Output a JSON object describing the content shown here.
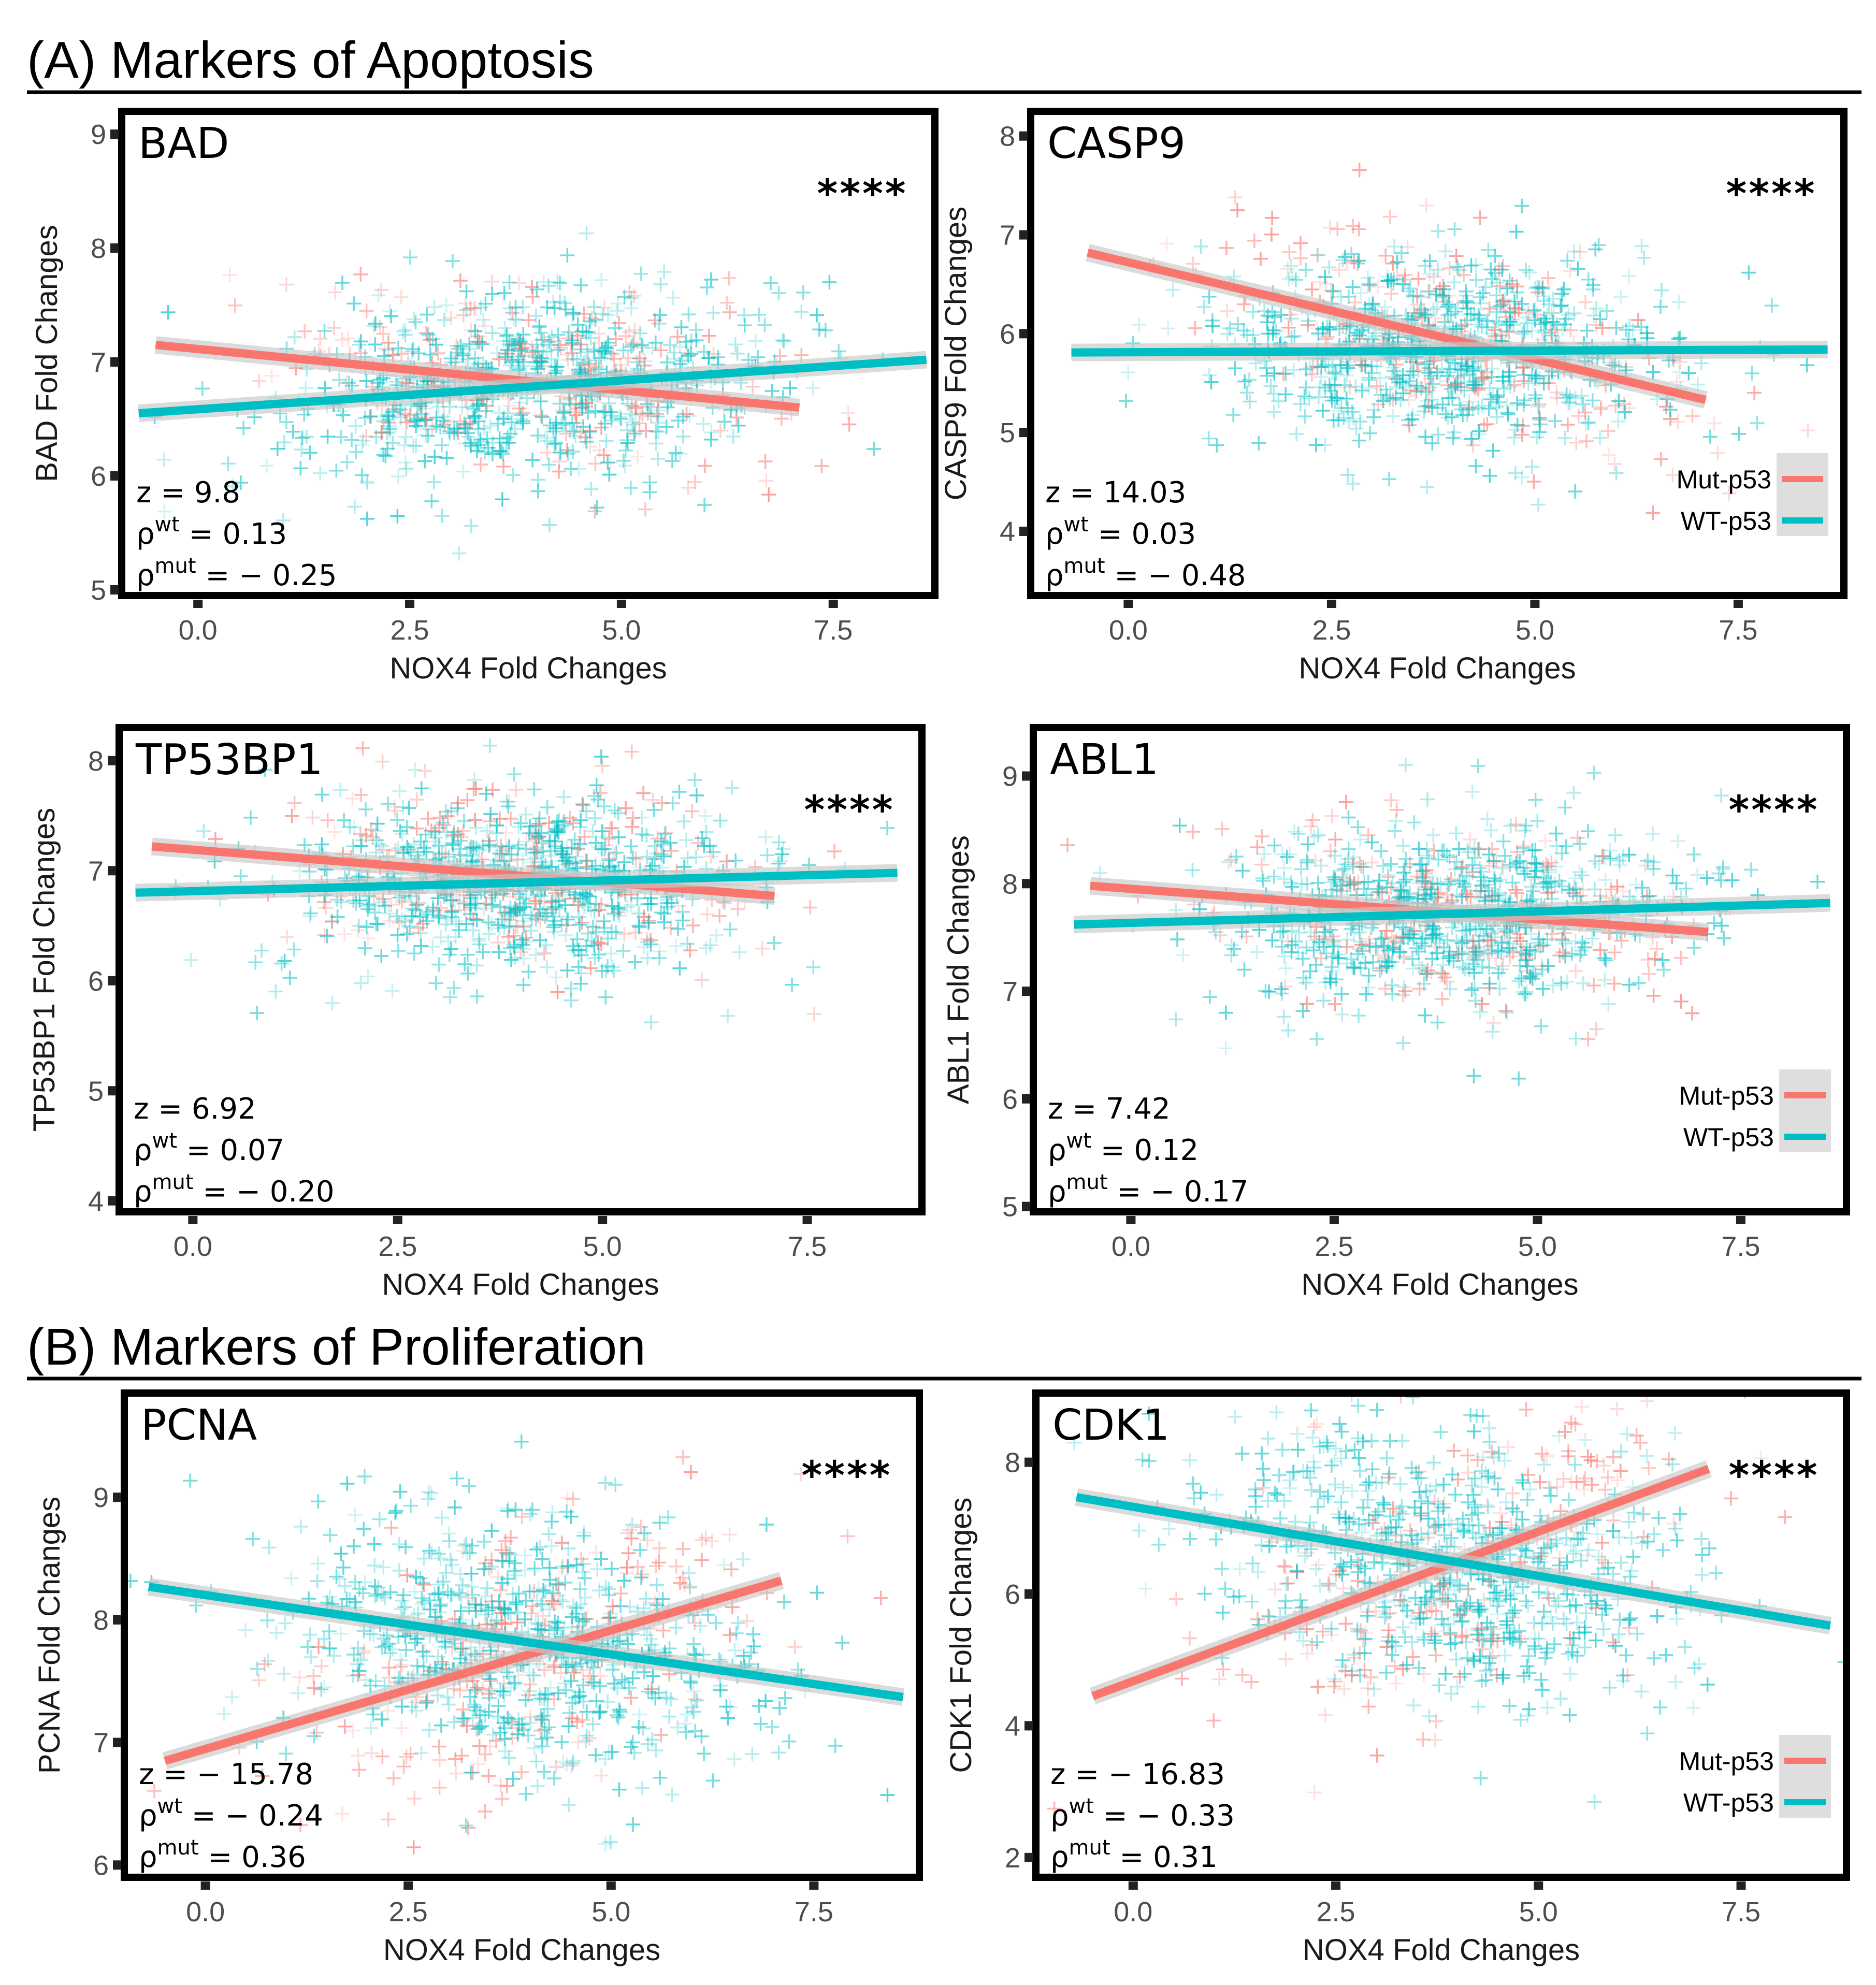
{
  "figure": {
    "sections": [
      {
        "label": "(A) Markers of Apoptosis"
      },
      {
        "label": "(B) Markers of Proliferation"
      }
    ],
    "colors": {
      "mut": "#f8766d",
      "wt": "#00bfc4",
      "ci_band": "#c8c8c8",
      "frame": "#000000"
    },
    "legend": {
      "items": [
        {
          "label": "Mut-p53",
          "color": "#f8766d"
        },
        {
          "label": "WT-p53",
          "color": "#00bfc4"
        }
      ]
    }
  },
  "chart_data": [
    {
      "type": "scatter",
      "title": "BAD",
      "xlabel": "NOX4 Fold Changes",
      "ylabel": "BAD Fold Changes",
      "xlim": [
        -0.9,
        8.7
      ],
      "ylim": [
        4.95,
        9.2
      ],
      "xticks": [
        0.0,
        2.5,
        5.0,
        7.5
      ],
      "xtick_labels": [
        "0.0",
        "2.5",
        "5.0",
        "7.5"
      ],
      "yticks": [
        5,
        6,
        7,
        8,
        9
      ],
      "ytick_labels": [
        "5",
        "6",
        "7",
        "8",
        "9"
      ],
      "stats": {
        "z": "z = 9.8",
        "rho_wt": " = 0.13",
        "rho_mut": " = − 0.25"
      },
      "significance": "****",
      "legend": false,
      "points": {
        "x_center": 3.9,
        "x_sd": 1.45,
        "y_center": 6.85,
        "y_sd": 0.42,
        "n_wt": 700,
        "n_mut": 260
      },
      "series": [
        {
          "name": "Mut-p53",
          "fit": {
            "x": [
              -0.5,
              7.1
            ],
            "y": [
              7.15,
              6.6
            ]
          }
        },
        {
          "name": "WT-p53",
          "fit": {
            "x": [
              -0.7,
              8.6
            ],
            "y": [
              6.55,
              7.02
            ]
          }
        }
      ]
    },
    {
      "type": "scatter",
      "title": "CASP9",
      "xlabel": "NOX4 Fold Changes",
      "ylabel": "CASP9 Fold Changes",
      "xlim": [
        -1.2,
        8.8
      ],
      "ylim": [
        3.35,
        8.25
      ],
      "xticks": [
        0.0,
        2.5,
        5.0,
        7.5
      ],
      "xtick_labels": [
        "0.0",
        "2.5",
        "5.0",
        "7.5"
      ],
      "yticks": [
        4,
        5,
        6,
        7,
        8
      ],
      "ytick_labels": [
        "4",
        "5",
        "6",
        "7",
        "8"
      ],
      "stats": {
        "z": "z = 14.03",
        "rho_wt": " = 0.03",
        "rho_mut": " = − 0.48"
      },
      "significance": "****",
      "legend": true,
      "points": {
        "x_center": 3.9,
        "x_sd": 1.45,
        "y_center": 5.85,
        "y_sd": 0.48,
        "n_wt": 700,
        "n_mut": 260
      },
      "series": [
        {
          "name": "Mut-p53",
          "fit": {
            "x": [
              -0.5,
              7.1
            ],
            "y": [
              6.82,
              5.33
            ]
          }
        },
        {
          "name": "WT-p53",
          "fit": {
            "x": [
              -0.7,
              8.6
            ],
            "y": [
              5.81,
              5.84
            ]
          }
        }
      ]
    },
    {
      "type": "scatter",
      "title": "TP53BP1",
      "xlabel": "NOX4 Fold Changes",
      "ylabel": "TP53BP1 Fold Changes",
      "xlim": [
        -0.9,
        8.9
      ],
      "ylim": [
        3.9,
        8.3
      ],
      "xticks": [
        0.0,
        2.5,
        5.0,
        7.5
      ],
      "xtick_labels": [
        "0.0",
        "2.5",
        "5.0",
        "7.5"
      ],
      "yticks": [
        4,
        5,
        6,
        7,
        8
      ],
      "ytick_labels": [
        "4",
        "5",
        "6",
        "7",
        "8"
      ],
      "stats": {
        "z": "z = 6.92",
        "rho_wt": " = 0.07",
        "rho_mut": " = − 0.20"
      },
      "significance": "****",
      "legend": false,
      "points": {
        "x_center": 3.9,
        "x_sd": 1.45,
        "y_center": 6.9,
        "y_sd": 0.42,
        "n_wt": 700,
        "n_mut": 260
      },
      "series": [
        {
          "name": "Mut-p53",
          "fit": {
            "x": [
              -0.5,
              7.1
            ],
            "y": [
              7.22,
              6.77
            ]
          }
        },
        {
          "name": "WT-p53",
          "fit": {
            "x": [
              -0.7,
              8.6
            ],
            "y": [
              6.8,
              6.98
            ]
          }
        }
      ]
    },
    {
      "type": "scatter",
      "title": "ABL1",
      "xlabel": "NOX4 Fold Changes",
      "ylabel": "ABL1 Fold Changes",
      "xlim": [
        -1.2,
        8.8
      ],
      "ylim": [
        4.95,
        9.45
      ],
      "xticks": [
        0.0,
        2.5,
        5.0,
        7.5
      ],
      "xtick_labels": [
        "0.0",
        "2.5",
        "5.0",
        "7.5"
      ],
      "yticks": [
        5,
        6,
        7,
        8,
        9
      ],
      "ytick_labels": [
        "5",
        "6",
        "7",
        "8",
        "9"
      ],
      "stats": {
        "z": "z = 7.42",
        "rho_wt": " = 0.12",
        "rho_mut": " = − 0.17"
      },
      "significance": "****",
      "legend": true,
      "points": {
        "x_center": 3.9,
        "x_sd": 1.45,
        "y_center": 7.75,
        "y_sd": 0.42,
        "n_wt": 700,
        "n_mut": 260
      },
      "series": [
        {
          "name": "Mut-p53",
          "fit": {
            "x": [
              -0.5,
              7.1
            ],
            "y": [
              7.98,
              7.55
            ]
          }
        },
        {
          "name": "WT-p53",
          "fit": {
            "x": [
              -0.7,
              8.6
            ],
            "y": [
              7.62,
              7.82
            ]
          }
        }
      ]
    },
    {
      "type": "scatter",
      "title": "PCNA",
      "xlabel": "NOX4 Fold Changes",
      "ylabel": "PCNA Fold Changes",
      "xlim": [
        -1.0,
        8.8
      ],
      "ylim": [
        5.9,
        9.85
      ],
      "xticks": [
        0.0,
        2.5,
        5.0,
        7.5
      ],
      "xtick_labels": [
        "0.0",
        "2.5",
        "5.0",
        "7.5"
      ],
      "yticks": [
        6,
        7,
        8,
        9
      ],
      "ytick_labels": [
        "6",
        "7",
        "8",
        "9"
      ],
      "stats": {
        "z": "z = − 15.78",
        "rho_wt": " = − 0.24",
        "rho_mut": " = 0.36"
      },
      "significance": "****",
      "legend": false,
      "points": {
        "x_center": 3.9,
        "x_sd": 1.45,
        "y_center": 7.8,
        "y_sd": 0.52,
        "n_wt": 700,
        "n_mut": 260
      },
      "series": [
        {
          "name": "Mut-p53",
          "fit": {
            "x": [
              -0.5,
              7.1
            ],
            "y": [
              6.85,
              8.32
            ]
          }
        },
        {
          "name": "WT-p53",
          "fit": {
            "x": [
              -0.7,
              8.6
            ],
            "y": [
              8.27,
              7.37
            ]
          }
        }
      ]
    },
    {
      "type": "scatter",
      "title": "CDK1",
      "xlabel": "NOX4 Fold Changes",
      "ylabel": "CDK1 Fold Changes",
      "xlim": [
        -1.2,
        8.8
      ],
      "ylim": [
        1.7,
        9.05
      ],
      "xticks": [
        0.0,
        2.5,
        5.0,
        7.5
      ],
      "xtick_labels": [
        "0.0",
        "2.5",
        "5.0",
        "7.5"
      ],
      "yticks": [
        2,
        4,
        6,
        8
      ],
      "ytick_labels": [
        "2",
        "4",
        "6",
        "8"
      ],
      "stats": {
        "z": "z = − 16.83",
        "rho_wt": " = − 0.33",
        "rho_mut": " = 0.31"
      },
      "significance": "****",
      "legend": true,
      "points": {
        "x_center": 3.9,
        "x_sd": 1.45,
        "y_center": 6.6,
        "y_sd": 1.0,
        "n_wt": 700,
        "n_mut": 260
      },
      "series": [
        {
          "name": "Mut-p53",
          "fit": {
            "x": [
              -0.5,
              7.1
            ],
            "y": [
              4.45,
              7.9
            ]
          }
        },
        {
          "name": "WT-p53",
          "fit": {
            "x": [
              -0.7,
              8.6
            ],
            "y": [
              7.47,
              5.52
            ]
          }
        }
      ]
    }
  ]
}
